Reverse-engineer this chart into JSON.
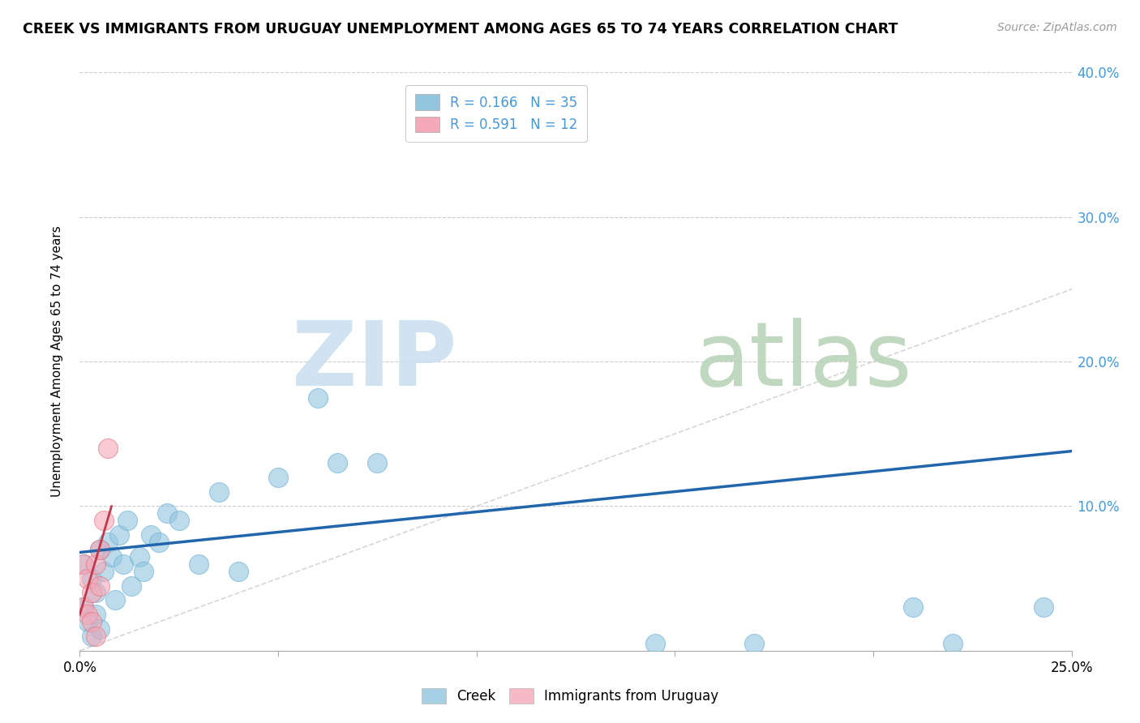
{
  "title": "CREEK VS IMMIGRANTS FROM URUGUAY UNEMPLOYMENT AMONG AGES 65 TO 74 YEARS CORRELATION CHART",
  "source": "Source: ZipAtlas.com",
  "ylabel": "Unemployment Among Ages 65 to 74 years",
  "xlim": [
    0.0,
    0.25
  ],
  "ylim": [
    0.0,
    0.4
  ],
  "xticks": [
    0.0,
    0.05,
    0.1,
    0.15,
    0.2,
    0.25
  ],
  "yticks": [
    0.0,
    0.1,
    0.2,
    0.3,
    0.4
  ],
  "ytick_labels": [
    "",
    "10.0%",
    "20.0%",
    "30.0%",
    "40.0%"
  ],
  "xtick_labels": [
    "0.0%",
    "",
    "",
    "",
    "",
    "25.0%"
  ],
  "creek_R": 0.166,
  "creek_N": 35,
  "uruguay_R": 0.591,
  "uruguay_N": 12,
  "creek_color": "#92c5de",
  "creek_edge_color": "#6baed6",
  "uruguay_color": "#f4a8b8",
  "uruguay_edge_color": "#e8707a",
  "creek_line_color": "#2166ac",
  "uruguay_line_color": "#c0384b",
  "ref_line_color": "#cccccc",
  "watermark_zip_color": "#cce0f0",
  "watermark_atlas_color": "#b8d4b8",
  "legend_label_creek": "Creek",
  "legend_label_uruguay": "Immigrants from Uruguay",
  "creek_x": [
    0.001,
    0.001,
    0.002,
    0.003,
    0.003,
    0.004,
    0.004,
    0.005,
    0.005,
    0.006,
    0.007,
    0.008,
    0.009,
    0.01,
    0.011,
    0.012,
    0.013,
    0.015,
    0.016,
    0.018,
    0.02,
    0.022,
    0.025,
    0.03,
    0.035,
    0.04,
    0.05,
    0.06,
    0.065,
    0.075,
    0.145,
    0.17,
    0.21,
    0.22,
    0.243
  ],
  "creek_y": [
    0.06,
    0.03,
    0.02,
    0.05,
    0.01,
    0.04,
    0.025,
    0.07,
    0.015,
    0.055,
    0.075,
    0.065,
    0.035,
    0.08,
    0.06,
    0.09,
    0.045,
    0.065,
    0.055,
    0.08,
    0.075,
    0.095,
    0.09,
    0.06,
    0.11,
    0.055,
    0.12,
    0.175,
    0.13,
    0.13,
    0.005,
    0.005,
    0.03,
    0.005,
    0.03
  ],
  "uruguay_x": [
    0.001,
    0.001,
    0.002,
    0.002,
    0.003,
    0.003,
    0.004,
    0.004,
    0.005,
    0.005,
    0.006,
    0.007
  ],
  "uruguay_y": [
    0.06,
    0.03,
    0.025,
    0.05,
    0.02,
    0.04,
    0.01,
    0.06,
    0.045,
    0.07,
    0.09,
    0.14
  ],
  "creek_line_x": [
    0.0,
    0.25
  ],
  "creek_line_y": [
    0.068,
    0.138
  ],
  "uruguay_line_x": [
    0.0,
    0.008
  ],
  "uruguay_line_y": [
    0.025,
    0.1
  ]
}
